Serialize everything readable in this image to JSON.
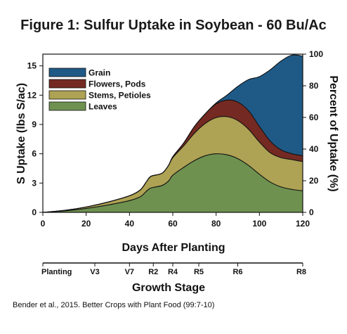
{
  "chart_data": {
    "type": "area",
    "title": "Figure 1: Sulfur Uptake in Soybean - 60 Bu/Ac",
    "xlabel": "Days After Planting",
    "ylabel": "S Uptake (lbs S/ac)",
    "y2label": "Percent of Uptake (%)",
    "stage_axis_label": "Growth Stage",
    "source": "Bender et al., 2015. Better Crops with Plant Food (99:7-10)",
    "xlim": [
      0,
      120
    ],
    "ylim": [
      0,
      16.2
    ],
    "y2lim": [
      0,
      100
    ],
    "x_ticks": [
      0,
      20,
      40,
      60,
      80,
      100,
      120
    ],
    "y_ticks": [
      0,
      3,
      6,
      9,
      12,
      15
    ],
    "y2_ticks": [
      0,
      20,
      40,
      60,
      80,
      100
    ],
    "stacked": true,
    "legend_position": "top-left",
    "x": [
      0,
      10,
      20,
      30,
      40,
      45,
      48,
      50,
      55,
      58,
      60,
      65,
      70,
      75,
      80,
      85,
      90,
      95,
      100,
      105,
      110,
      115,
      120
    ],
    "series": [
      {
        "name": "Leaves",
        "color": "#6e9150",
        "values": [
          0,
          0.15,
          0.4,
          0.75,
          1.2,
          1.6,
          2.2,
          2.5,
          2.75,
          3.2,
          3.8,
          4.6,
          5.3,
          5.8,
          6.0,
          5.9,
          5.5,
          4.8,
          3.9,
          3.1,
          2.6,
          2.35,
          2.2
        ]
      },
      {
        "name": "Stems, Petioles",
        "color": "#aea254",
        "values": [
          0,
          0.05,
          0.15,
          0.3,
          0.5,
          0.7,
          1.0,
          1.2,
          1.25,
          1.6,
          1.8,
          2.2,
          2.8,
          3.3,
          3.7,
          3.9,
          3.9,
          3.7,
          3.3,
          3.0,
          3.0,
          3.05,
          3.0
        ]
      },
      {
        "name": "Flowers, Pods",
        "color": "#742a22",
        "values": [
          0,
          0,
          0,
          0,
          0,
          0,
          0,
          0,
          0,
          0,
          0.1,
          0.3,
          0.7,
          1.0,
          1.4,
          1.7,
          1.9,
          1.9,
          1.6,
          1.2,
          0.8,
          0.6,
          0.6
        ]
      },
      {
        "name": "Grain",
        "color": "#1f5a87",
        "values": [
          0,
          0,
          0,
          0,
          0,
          0,
          0,
          0,
          0,
          0,
          0,
          0,
          0,
          0,
          0.1,
          0.5,
          1.6,
          3.2,
          5.1,
          7.3,
          9.1,
          10.1,
          10.2
        ]
      }
    ],
    "growth_stages": [
      {
        "label": "Planting",
        "day": 0
      },
      {
        "label": "V3",
        "day": 24
      },
      {
        "label": "V7",
        "day": 40
      },
      {
        "label": "R2",
        "day": 51
      },
      {
        "label": "R4",
        "day": 60
      },
      {
        "label": "R5",
        "day": 72
      },
      {
        "label": "R6",
        "day": 90
      },
      {
        "label": "R8",
        "day": 120
      }
    ]
  }
}
